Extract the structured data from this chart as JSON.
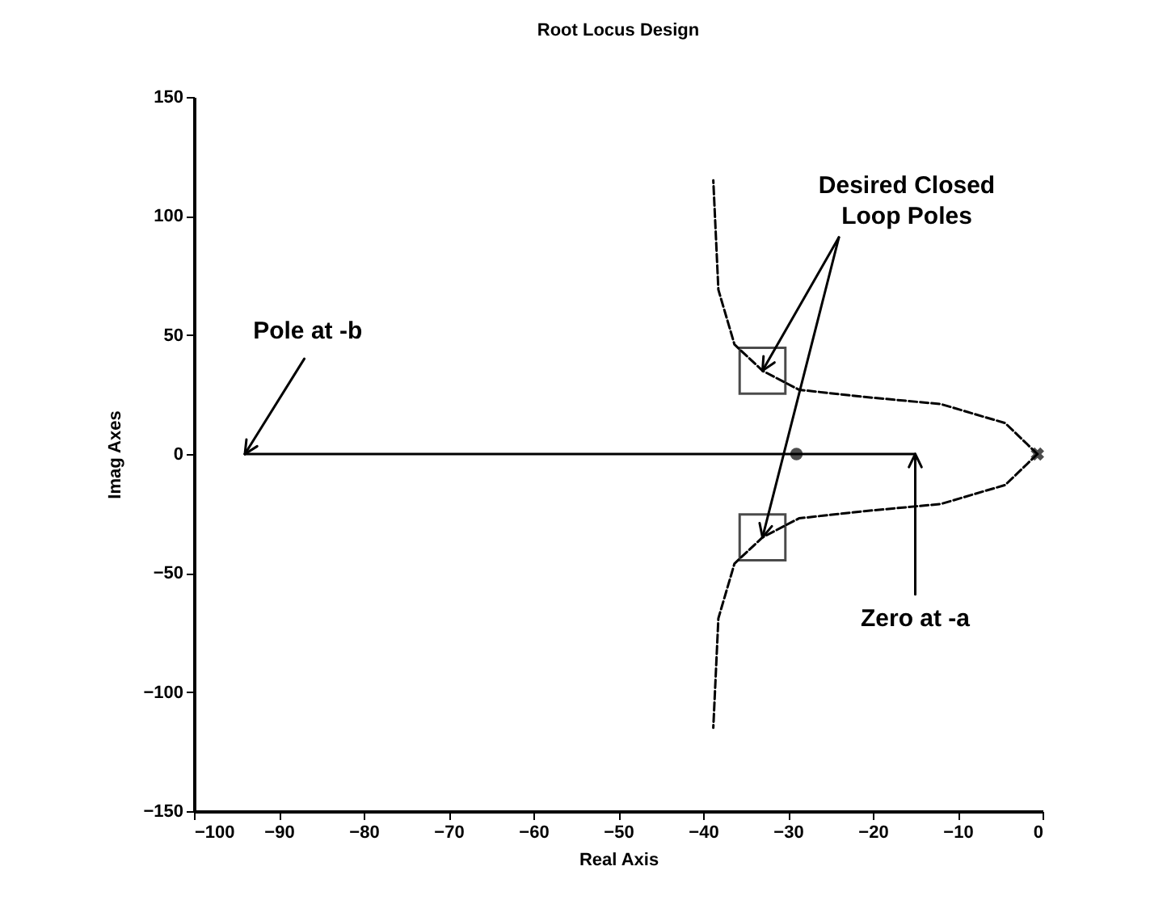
{
  "chart_data": {
    "type": "line",
    "title": "Root Locus Design",
    "xlabel": "Real Axis",
    "ylabel": "Imag Axes",
    "xlim": [
      -100,
      0
    ],
    "xticks": [
      -100,
      -90,
      -80,
      -70,
      -60,
      -50,
      -40,
      -30,
      -20,
      -10,
      0
    ],
    "ylim": [
      -150,
      150
    ],
    "yticks": [
      -150,
      -100,
      -50,
      0,
      50,
      100,
      150
    ],
    "grid": false,
    "series": [
      {
        "color": "#000000",
        "line_style": "solid",
        "x": [
          -94,
          -15
        ],
        "values": [
          0,
          0
        ]
      },
      {
        "color": "#000000",
        "line_style": "dashed",
        "x": [
          -0.6,
          -4.4,
          -12,
          -21,
          -28.7,
          -33,
          -36.3,
          -38.2,
          -38.8
        ],
        "values": [
          0,
          13,
          21,
          24,
          27,
          35,
          46,
          69,
          115
        ]
      },
      {
        "color": "#000000",
        "line_style": "dashed",
        "x": [
          -0.6,
          -4.4,
          -12,
          -21,
          -28.7,
          -33,
          -36.3,
          -38.2,
          -38.8
        ],
        "values": [
          0,
          -13,
          -21,
          -24,
          -27,
          -35,
          -46,
          -69,
          -115
        ]
      },
      {
        "type": "scatter",
        "color": "#000000",
        "marker": "cross",
        "x": [
          -0.6
        ],
        "values": [
          0
        ]
      },
      {
        "type": "scatter",
        "color": "#000000",
        "marker": "square",
        "x": [
          -33,
          -33
        ],
        "values": [
          35,
          -35
        ]
      },
      {
        "type": "scatter",
        "color": "#000000",
        "marker": "circle",
        "x": [
          -29
        ],
        "values": [
          0
        ]
      }
    ],
    "annotations": [
      {
        "text": "Pole at -b",
        "x": -94,
        "y": 0
      },
      {
        "text": "Desired Closed Loop Poles",
        "x": -33,
        "y": 35
      },
      {
        "text": "Zero at -a",
        "x": -15,
        "y": 0
      }
    ]
  }
}
